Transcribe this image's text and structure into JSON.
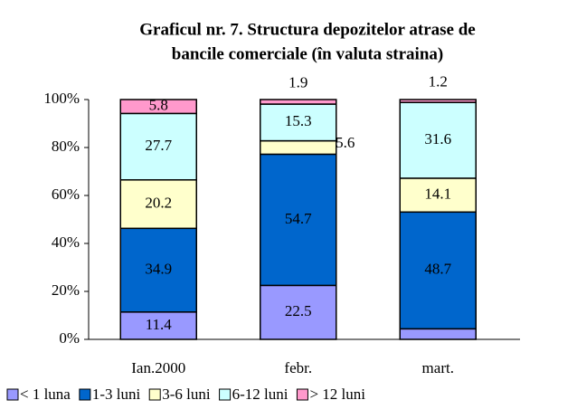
{
  "chart_data": {
    "type": "stacked_bar",
    "title": [
      "Graficul nr. 7. Structura depozitelor atrase de",
      "bancile comerciale (în valuta straina)"
    ],
    "categories": [
      "Ian.2000",
      "febr.",
      "mart."
    ],
    "series": [
      {
        "name": "< 1 luna",
        "color": "#9999ff",
        "values": [
          11.4,
          22.5,
          4.4
        ]
      },
      {
        "name": "1-3 luni",
        "color": "#0066cc",
        "values": [
          34.9,
          54.7,
          48.7
        ]
      },
      {
        "name": "3-6 luni",
        "color": "#ffffcc",
        "values": [
          20.2,
          5.6,
          14.1
        ]
      },
      {
        "name": "6-12 luni",
        "color": "#ccffff",
        "values": [
          27.7,
          15.3,
          31.6
        ]
      },
      {
        "name": "> 12 luni",
        "color": "#ff99cc",
        "values": [
          5.8,
          1.9,
          1.2
        ]
      }
    ],
    "ylim": [
      0,
      100
    ],
    "yticks": [
      {
        "value": 0,
        "label": "0%"
      },
      {
        "value": 20,
        "label": "20%"
      },
      {
        "value": 40,
        "label": "40%"
      },
      {
        "value": 60,
        "label": "60%"
      },
      {
        "value": 80,
        "label": "80%"
      },
      {
        "value": 100,
        "label": "100%"
      }
    ],
    "legend": "bottom"
  }
}
